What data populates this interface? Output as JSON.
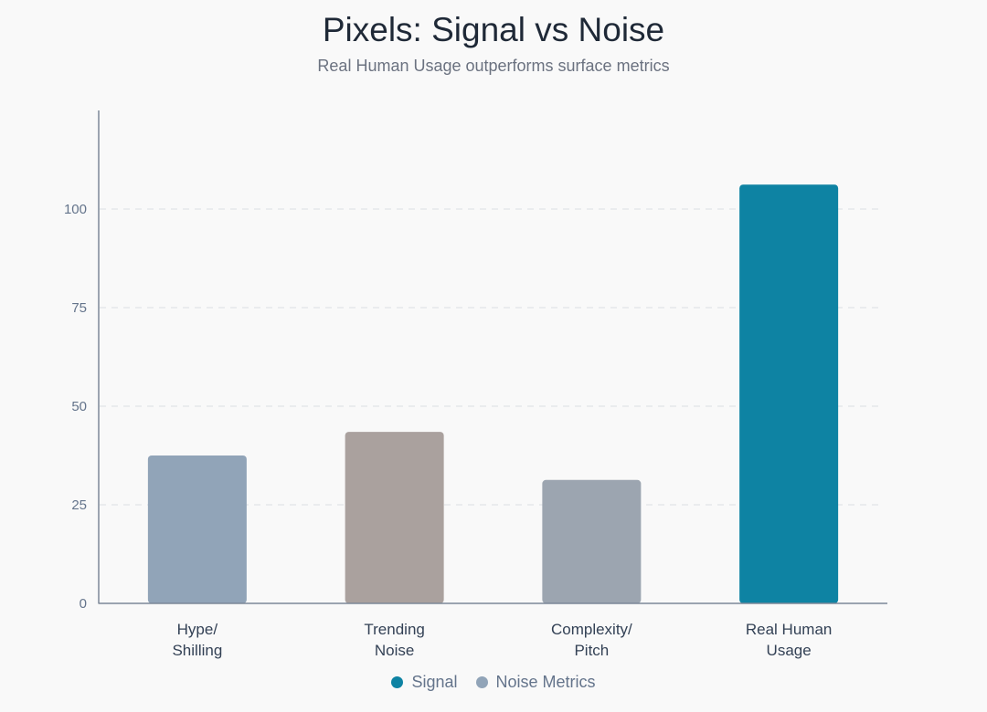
{
  "chart_data": {
    "type": "bar",
    "title": "Pixels: Signal vs Noise",
    "subtitle": "Real Human Usage outperforms surface metrics",
    "categories": [
      [
        "Hype/",
        "Shilling"
      ],
      [
        "Trending",
        "Noise"
      ],
      [
        "Complexity/",
        "Pitch"
      ],
      [
        "Real Human",
        "Usage"
      ]
    ],
    "values": [
      37.5,
      43.5,
      31.3,
      106.2
    ],
    "bar_groups": [
      "Noise Metrics",
      "Noise Metrics",
      "Noise Metrics",
      "Signal"
    ],
    "bar_colors": [
      "#91a4b8",
      "#aaa19e",
      "#9ca5b0",
      "#0e83a3"
    ],
    "ylim": [
      0,
      125
    ],
    "yticks": [
      "0",
      "25",
      "50",
      "75",
      "100"
    ],
    "grid": true,
    "legend_position": "bottom-center",
    "legend": [
      {
        "name": "Signal",
        "color": "#0e83a3"
      },
      {
        "name": "Noise Metrics",
        "color": "#91a4b8"
      }
    ]
  }
}
